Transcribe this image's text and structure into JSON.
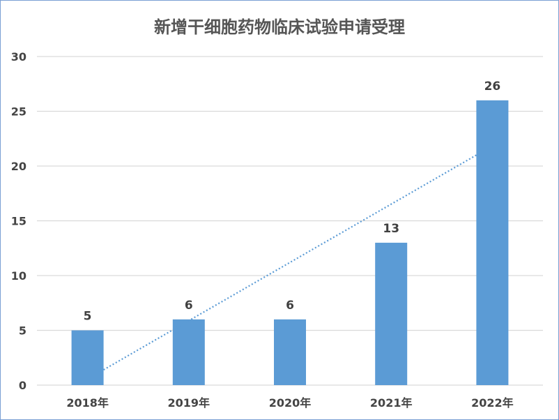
{
  "chart_data": {
    "type": "bar",
    "title": "新增干细胞药物临床试验申请受理",
    "categories": [
      "2018年",
      "2019年",
      "2020年",
      "2021年",
      "2022年"
    ],
    "series": [
      {
        "values": [
          5,
          6,
          6,
          13,
          26
        ]
      }
    ],
    "data_labels": [
      "5",
      "6",
      "6",
      "13",
      "26"
    ],
    "yticks": [
      "0",
      "5",
      "10",
      "15",
      "20",
      "25",
      "30"
    ],
    "ylim": [
      0,
      30
    ],
    "grid": true,
    "trendline": "linear",
    "colors": {
      "bar": "#5b9bd5",
      "trend": "#5b9bd5",
      "grid": "#d9d9d9"
    }
  }
}
